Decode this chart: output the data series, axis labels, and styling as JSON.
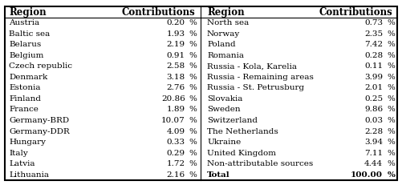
{
  "left_region": [
    "Region",
    "Austria",
    "Baltic sea",
    "Belarus",
    "Belgium",
    "Czech republic",
    "Denmark",
    "Estonia",
    "Finland",
    "France",
    "Germany-BRD",
    "Germany-DDR",
    "Hungary",
    "Italy",
    "Latvia",
    "Lithuania"
  ],
  "left_contrib": [
    "Contributions",
    "0.20 %",
    "1.93 %",
    "2.19 %",
    "0.91 %",
    "2.58 %",
    "3.18 %",
    "2.76 %",
    "20.86 %",
    "1.89 %",
    "10.07 %",
    "4.09 %",
    "0.33 %",
    "0.29 %",
    "1.72 %",
    "2.16 %"
  ],
  "right_region": [
    "Region",
    "North sea",
    "Norway",
    "Poland",
    "Romania",
    "Russia - Kola, Karelia",
    "Russia - Remaining areas",
    "Russia - St. Petrusburg",
    "Slovakia",
    "Sweden",
    "Switzerland",
    "The Netherlands",
    "Ukraine",
    "United Kingdom",
    "Non-attributable sources",
    "Total"
  ],
  "right_contrib": [
    "Contributions",
    "0.73 %",
    "2.35 %",
    "7.42 %",
    "0.28 %",
    "0.11 %",
    "3.99 %",
    "2.01 %",
    "0.25 %",
    "9.86 %",
    "0.03 %",
    "2.28 %",
    "3.94 %",
    "7.11 %",
    "4.44 %",
    "100.00 %"
  ],
  "background_color": "#ffffff",
  "border_color": "#000000",
  "font_size": 7.5,
  "header_font_size": 8.5
}
